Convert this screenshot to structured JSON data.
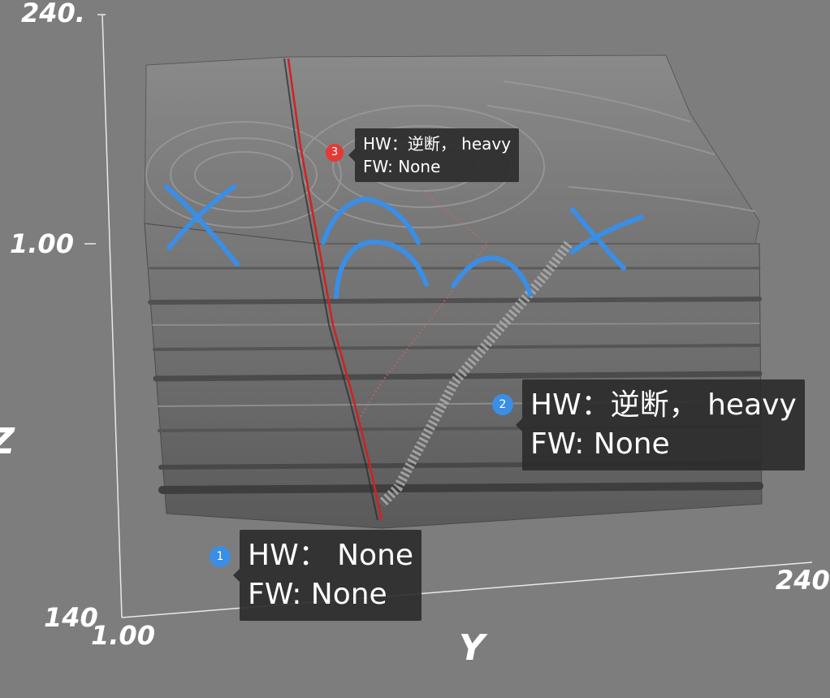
{
  "axes": {
    "z_top": "240.",
    "z_mid": "1.00",
    "z_title": "Z",
    "z_bottom": "140",
    "y_start": "1.00",
    "y_title": "Y",
    "y_end": "240"
  },
  "annotations": [
    {
      "index": "1",
      "hw": "HW： None",
      "fw": "FW: None",
      "badge_color": "#3a8ee6"
    },
    {
      "index": "2",
      "hw": "HW：逆断， heavy",
      "fw": "FW: None",
      "badge_color": "#3a8ee6"
    },
    {
      "index": "3",
      "hw": "HW：逆断， heavy",
      "fw": "FW: None",
      "badge_color": "#e53935"
    }
  ],
  "colors": {
    "background": "#7d7d7d",
    "volume": "#6e6e6e",
    "fault_line": "#d42020",
    "pen_marks": "#3a8ee6"
  }
}
